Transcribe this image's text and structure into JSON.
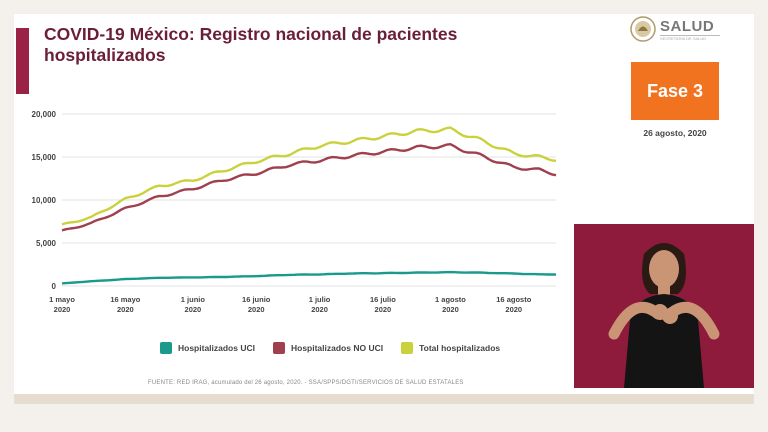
{
  "header": {
    "title": "COVID-19 México: Registro nacional de pacientes hospitalizados",
    "logo_text": "SALUD",
    "logo_subtext": "SECRETARÍA DE SALUD",
    "phase": "Fase 3",
    "date": "26 agosto, 2020"
  },
  "source": "FUENTE: RED IRAG, acumulado del 26 agosto, 2020. - SSA/SPPS/DGTI/SERVICIOS DE SALUD ESTATALES",
  "colors": {
    "uci": "#1a9a8d",
    "no_uci": "#a0404f",
    "total": "#c9d23c",
    "accent": "#9b2247",
    "phase": "#f2731f"
  },
  "chart_data": {
    "type": "line",
    "x": [
      "2020-05-01",
      "2020-05-08",
      "2020-05-16",
      "2020-05-24",
      "2020-06-01",
      "2020-06-08",
      "2020-06-16",
      "2020-06-24",
      "2020-07-01",
      "2020-07-08",
      "2020-07-16",
      "2020-07-24",
      "2020-08-01",
      "2020-08-08",
      "2020-08-16",
      "2020-08-22",
      "2020-08-26"
    ],
    "xticks": [
      {
        "date": "2020-05-01",
        "label": [
          "1 mayo",
          "2020"
        ]
      },
      {
        "date": "2020-05-16",
        "label": [
          "16 mayo",
          "2020"
        ]
      },
      {
        "date": "2020-06-01",
        "label": [
          "1 junio",
          "2020"
        ]
      },
      {
        "date": "2020-06-16",
        "label": [
          "16 junio",
          "2020"
        ]
      },
      {
        "date": "2020-07-01",
        "label": [
          "1 julio",
          "2020"
        ]
      },
      {
        "date": "2020-07-16",
        "label": [
          "16 julio",
          "2020"
        ]
      },
      {
        "date": "2020-08-01",
        "label": [
          "1 agosto",
          "2020"
        ]
      },
      {
        "date": "2020-08-16",
        "label": [
          "16 agosto",
          "2020"
        ]
      }
    ],
    "yticks": [
      0,
      5000,
      10000,
      15000,
      20000
    ],
    "ytick_labels": [
      "0",
      "5,000",
      "10,000",
      "15,000",
      "20,000"
    ],
    "ylim": [
      0,
      20000
    ],
    "xlim": [
      "2020-05-01",
      "2020-08-26"
    ],
    "series": [
      {
        "key": "uci",
        "name": "Hospitalizados UCI",
        "color": "#1a9a8d",
        "values": [
          300,
          550,
          800,
          950,
          1000,
          1050,
          1150,
          1300,
          1350,
          1450,
          1500,
          1550,
          1600,
          1550,
          1450,
          1350,
          1350
        ]
      },
      {
        "key": "no_uci",
        "name": "Hospitalizados NO UCI",
        "color": "#a0404f",
        "values": [
          6400,
          7300,
          9000,
          10400,
          11300,
          12300,
          13100,
          14100,
          14600,
          15100,
          15600,
          16100,
          16300,
          15200,
          13800,
          13500,
          13000
        ]
      },
      {
        "key": "total",
        "name": "Total hospitalizados",
        "color": "#c9d23c",
        "values": [
          7100,
          8000,
          10100,
          11600,
          12300,
          13400,
          14500,
          15400,
          16300,
          16800,
          17400,
          18000,
          18200,
          17000,
          15400,
          15000,
          14700
        ]
      }
    ],
    "grid": true,
    "legend": "bottom"
  }
}
